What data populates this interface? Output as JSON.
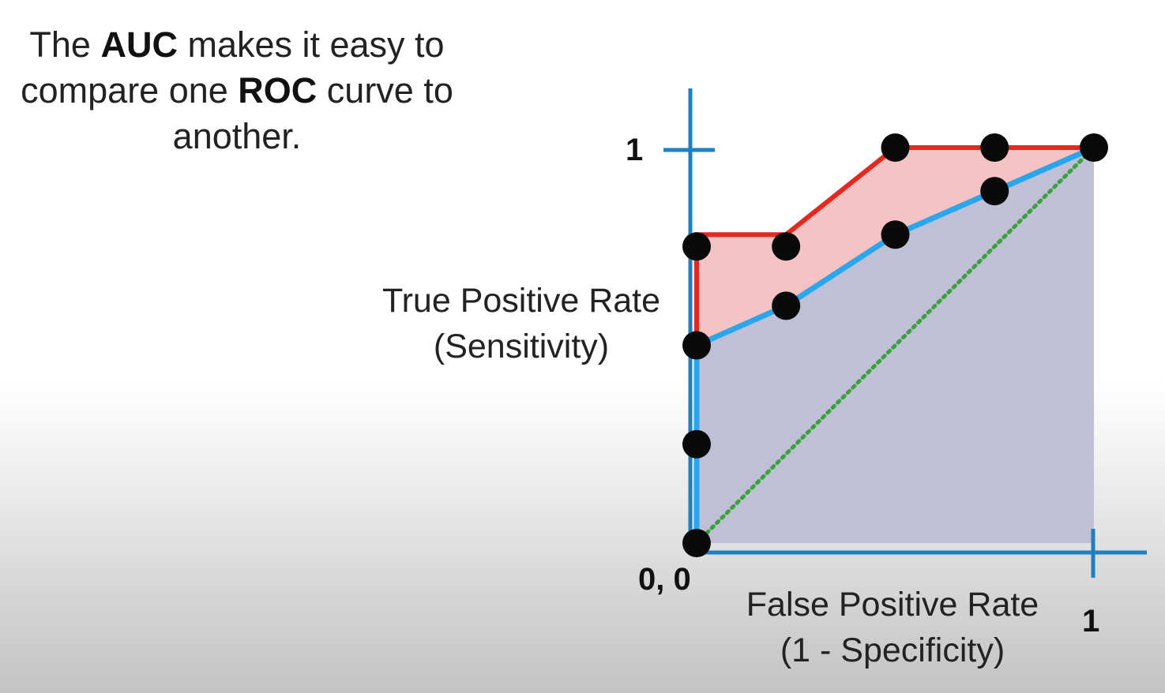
{
  "caption": {
    "part1": "The ",
    "bold1": "AUC",
    "part2": " makes it easy to compare one ",
    "bold2": "ROC",
    "part3": " curve to another."
  },
  "chart_data": {
    "type": "line",
    "ylabel_line1": "True Positive Rate",
    "ylabel_line2": "(Sensitivity)",
    "xlabel_line1": "False Positive Rate",
    "xlabel_line2": "(1 - Specificity)",
    "ticks": {
      "origin": "0, 0",
      "x_max": "1",
      "y_max": "1"
    },
    "xlim": [
      0,
      1
    ],
    "ylim": [
      0,
      1
    ],
    "grid": false,
    "series": [
      {
        "color": "#e8281e",
        "fill": "#f4bcbc",
        "points": [
          [
            0,
            0.75
          ],
          [
            0.225,
            0.75
          ],
          [
            0.5,
            1.0
          ],
          [
            0.75,
            1.0
          ],
          [
            1.0,
            1.0
          ]
        ],
        "path": [
          [
            0,
            0
          ],
          [
            0,
            0.5
          ],
          [
            0,
            0.78
          ],
          [
            0.225,
            0.78
          ],
          [
            0.5,
            1.0
          ],
          [
            1.0,
            1.0
          ]
        ]
      },
      {
        "color": "#2aa6ee",
        "fill": "#bfbfd6",
        "points": [
          [
            0,
            0
          ],
          [
            0,
            0.25
          ],
          [
            0,
            0.5
          ],
          [
            0.225,
            0.6
          ],
          [
            0.5,
            0.78
          ],
          [
            0.75,
            0.89
          ],
          [
            1.0,
            1.0
          ]
        ],
        "path": [
          [
            0,
            0
          ],
          [
            0,
            0.5
          ],
          [
            0.225,
            0.6
          ],
          [
            0.5,
            0.78
          ],
          [
            0.75,
            0.89
          ],
          [
            1.0,
            1.0
          ]
        ]
      },
      {
        "color": "#3aa23a",
        "style": "dotted",
        "path": [
          [
            0,
            0
          ],
          [
            1,
            1
          ]
        ]
      }
    ]
  }
}
